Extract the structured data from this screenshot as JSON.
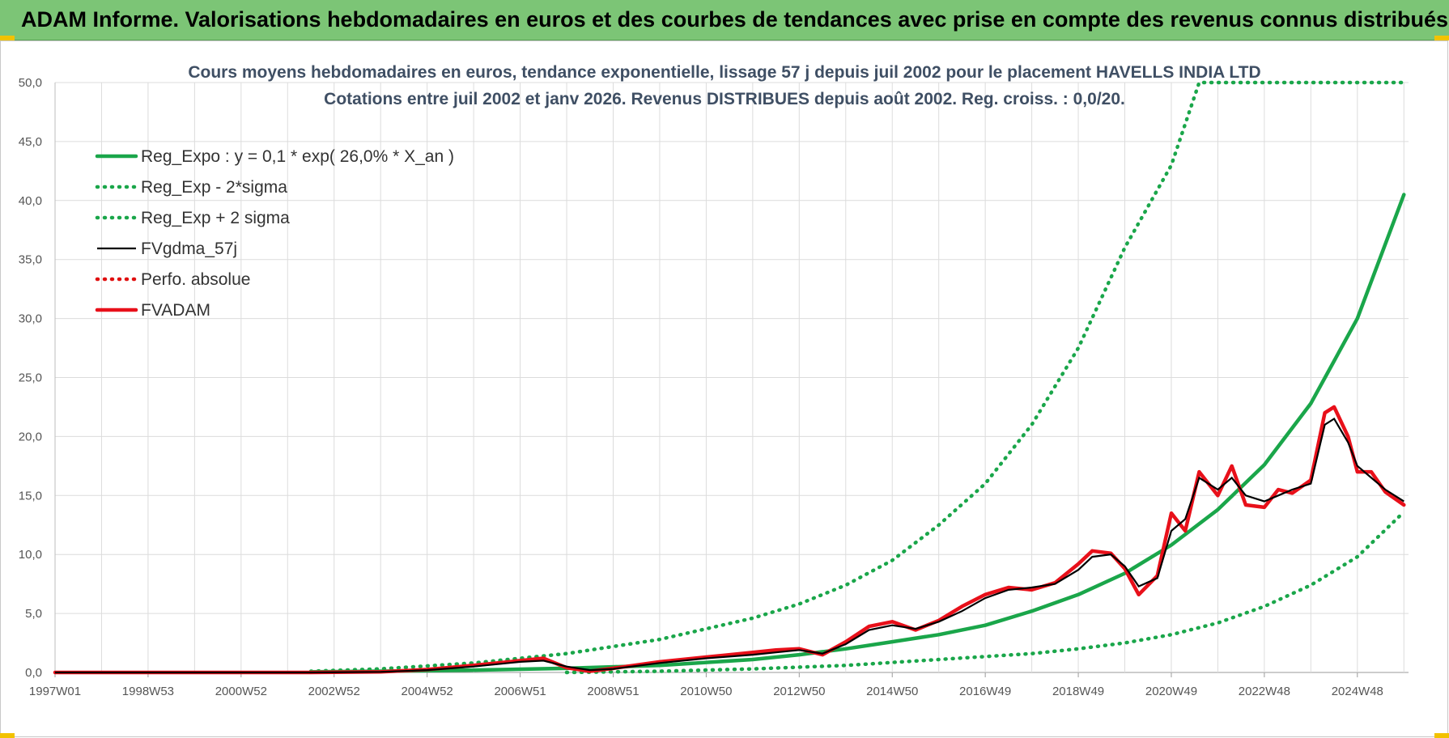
{
  "banner": {
    "title": "ADAM Informe. Valorisations hebdomadaires en euros et des courbes de tendances avec prise en compte des revenus connus distribués"
  },
  "colors": {
    "banner_bg": "#7cc576",
    "trend_green": "#1aa64a",
    "fvgdma_black": "#000000",
    "fvadam_red": "#e8101a",
    "perfo_red": "#e01010"
  },
  "chart_data": {
    "type": "line",
    "title": [
      "Cours moyens hebdomadaires en euros, tendance exponentielle, lissage 57 j depuis juil 2002 pour le placement HAVELLS INDIA LTD",
      "Cotations entre juil 2002 et janv 2026. Revenus DISTRIBUES depuis août 2002. Reg. croiss. : 0,0/20."
    ],
    "ylim": [
      0,
      50
    ],
    "y_ticks": [
      "0,0",
      "5,0",
      "10,0",
      "15,0",
      "20,0",
      "25,0",
      "30,0",
      "35,0",
      "40,0",
      "45,0",
      "50,0"
    ],
    "x_range_years": [
      1997.0,
      2026.1
    ],
    "x_ticks": [
      {
        "label": "1997W01",
        "year": 1997.0
      },
      {
        "label": "1998W53",
        "year": 1999.0
      },
      {
        "label": "2000W52",
        "year": 2001.0
      },
      {
        "label": "2002W52",
        "year": 2003.0
      },
      {
        "label": "2004W52",
        "year": 2005.0
      },
      {
        "label": "2006W51",
        "year": 2007.0
      },
      {
        "label": "2008W51",
        "year": 2009.0
      },
      {
        "label": "2010W50",
        "year": 2011.0
      },
      {
        "label": "2012W50",
        "year": 2013.0
      },
      {
        "label": "2014W50",
        "year": 2015.0
      },
      {
        "label": "2016W49",
        "year": 2017.0
      },
      {
        "label": "2018W49",
        "year": 2019.0
      },
      {
        "label": "2020W49",
        "year": 2021.0
      },
      {
        "label": "2022W48",
        "year": 2023.0
      },
      {
        "label": "2024W48",
        "year": 2025.0
      }
    ],
    "grid": true,
    "legend_position": "top-left",
    "series": [
      {
        "name": "Reg_Expo : y = 0,1 * exp( 26,0% *  X_an )",
        "style": "solid-thick",
        "color": "#1aa64a",
        "x": [
          2002.5,
          2004.0,
          2006.0,
          2008.0,
          2010.0,
          2011.0,
          2012.0,
          2013.0,
          2014.0,
          2015.0,
          2016.0,
          2017.0,
          2018.0,
          2019.0,
          2020.0,
          2021.0,
          2022.0,
          2023.0,
          2024.0,
          2025.0,
          2026.0
        ],
        "y": [
          0.05,
          0.1,
          0.2,
          0.35,
          0.6,
          0.85,
          1.1,
          1.5,
          2.0,
          2.6,
          3.2,
          4.0,
          5.2,
          6.6,
          8.4,
          10.8,
          13.8,
          17.6,
          22.8,
          30.0,
          40.5
        ]
      },
      {
        "name": "Reg_Exp - 2*sigma",
        "style": "dotted",
        "color": "#1aa64a",
        "x": [
          2008.0,
          2010.0,
          2012.0,
          2014.0,
          2016.0,
          2018.0,
          2019.0,
          2020.0,
          2021.0,
          2022.0,
          2023.0,
          2024.0,
          2025.0,
          2026.0
        ],
        "y": [
          0.0,
          0.1,
          0.3,
          0.6,
          1.1,
          1.6,
          2.0,
          2.5,
          3.2,
          4.2,
          5.6,
          7.4,
          9.8,
          13.6
        ]
      },
      {
        "name": "Reg_Exp + 2 sigma",
        "style": "dotted",
        "color": "#1aa64a",
        "x": [
          2002.5,
          2004.0,
          2006.0,
          2008.0,
          2010.0,
          2012.0,
          2013.0,
          2014.0,
          2015.0,
          2016.0,
          2017.0,
          2018.0,
          2019.0,
          2020.0,
          2021.0,
          2021.6,
          2022.0,
          2026.0
        ],
        "y": [
          0.1,
          0.3,
          0.8,
          1.6,
          2.8,
          4.6,
          5.8,
          7.4,
          9.5,
          12.5,
          16.0,
          21.0,
          27.5,
          36.0,
          43.0,
          50.0,
          50.0,
          50.0
        ]
      },
      {
        "name": "FVgdma_57j",
        "style": "solid-thin",
        "color": "#000000",
        "x": [
          1997.0,
          2002.5,
          2004.0,
          2005.0,
          2006.0,
          2007.0,
          2007.5,
          2008.0,
          2008.5,
          2009.0,
          2010.0,
          2011.0,
          2012.0,
          2012.5,
          2013.0,
          2013.5,
          2014.0,
          2014.5,
          2015.0,
          2015.5,
          2016.0,
          2016.5,
          2017.0,
          2017.5,
          2018.0,
          2018.5,
          2019.0,
          2019.3,
          2019.7,
          2020.0,
          2020.3,
          2020.7,
          2021.0,
          2021.3,
          2021.6,
          2022.0,
          2022.3,
          2022.6,
          2023.0,
          2023.3,
          2023.6,
          2024.0,
          2024.3,
          2024.5,
          2024.8,
          2025.0,
          2025.3,
          2025.6,
          2026.0
        ],
        "y": [
          0.0,
          0.0,
          0.05,
          0.2,
          0.5,
          0.9,
          1.0,
          0.5,
          0.2,
          0.3,
          0.8,
          1.2,
          1.5,
          1.7,
          1.9,
          1.6,
          2.4,
          3.6,
          4.0,
          3.7,
          4.3,
          5.2,
          6.3,
          7.0,
          7.2,
          7.5,
          8.7,
          9.8,
          10.0,
          9.0,
          7.3,
          8.0,
          12.0,
          13.0,
          16.5,
          15.5,
          16.5,
          15.0,
          14.5,
          15.0,
          15.5,
          16.0,
          21.0,
          21.5,
          19.5,
          17.5,
          16.5,
          15.5,
          14.5
        ]
      },
      {
        "name": "Perfo. absolue",
        "style": "dotted",
        "color": "#e01010",
        "x": [],
        "y": []
      },
      {
        "name": "FVADAM",
        "style": "solid-thick",
        "color": "#e8101a",
        "x": [
          1997.0,
          2002.5,
          2004.0,
          2005.0,
          2006.0,
          2007.0,
          2007.5,
          2008.0,
          2008.5,
          2009.0,
          2010.0,
          2011.0,
          2012.0,
          2012.5,
          2013.0,
          2013.5,
          2014.0,
          2014.5,
          2015.0,
          2015.5,
          2016.0,
          2016.5,
          2017.0,
          2017.5,
          2018.0,
          2018.5,
          2019.0,
          2019.3,
          2019.7,
          2020.0,
          2020.3,
          2020.7,
          2021.0,
          2021.3,
          2021.6,
          2022.0,
          2022.3,
          2022.6,
          2023.0,
          2023.3,
          2023.6,
          2024.0,
          2024.3,
          2024.5,
          2024.8,
          2025.0,
          2025.3,
          2025.6,
          2026.0
        ],
        "y": [
          0.0,
          0.0,
          0.05,
          0.25,
          0.6,
          1.0,
          1.2,
          0.4,
          0.1,
          0.35,
          0.9,
          1.3,
          1.7,
          1.9,
          2.0,
          1.5,
          2.6,
          3.9,
          4.3,
          3.6,
          4.4,
          5.6,
          6.6,
          7.2,
          7.0,
          7.6,
          9.2,
          10.3,
          10.1,
          8.8,
          6.6,
          8.2,
          13.5,
          12.0,
          17.0,
          15.0,
          17.5,
          14.2,
          14.0,
          15.5,
          15.2,
          16.3,
          22.0,
          22.5,
          20.0,
          17.0,
          17.0,
          15.3,
          14.2
        ]
      }
    ]
  }
}
